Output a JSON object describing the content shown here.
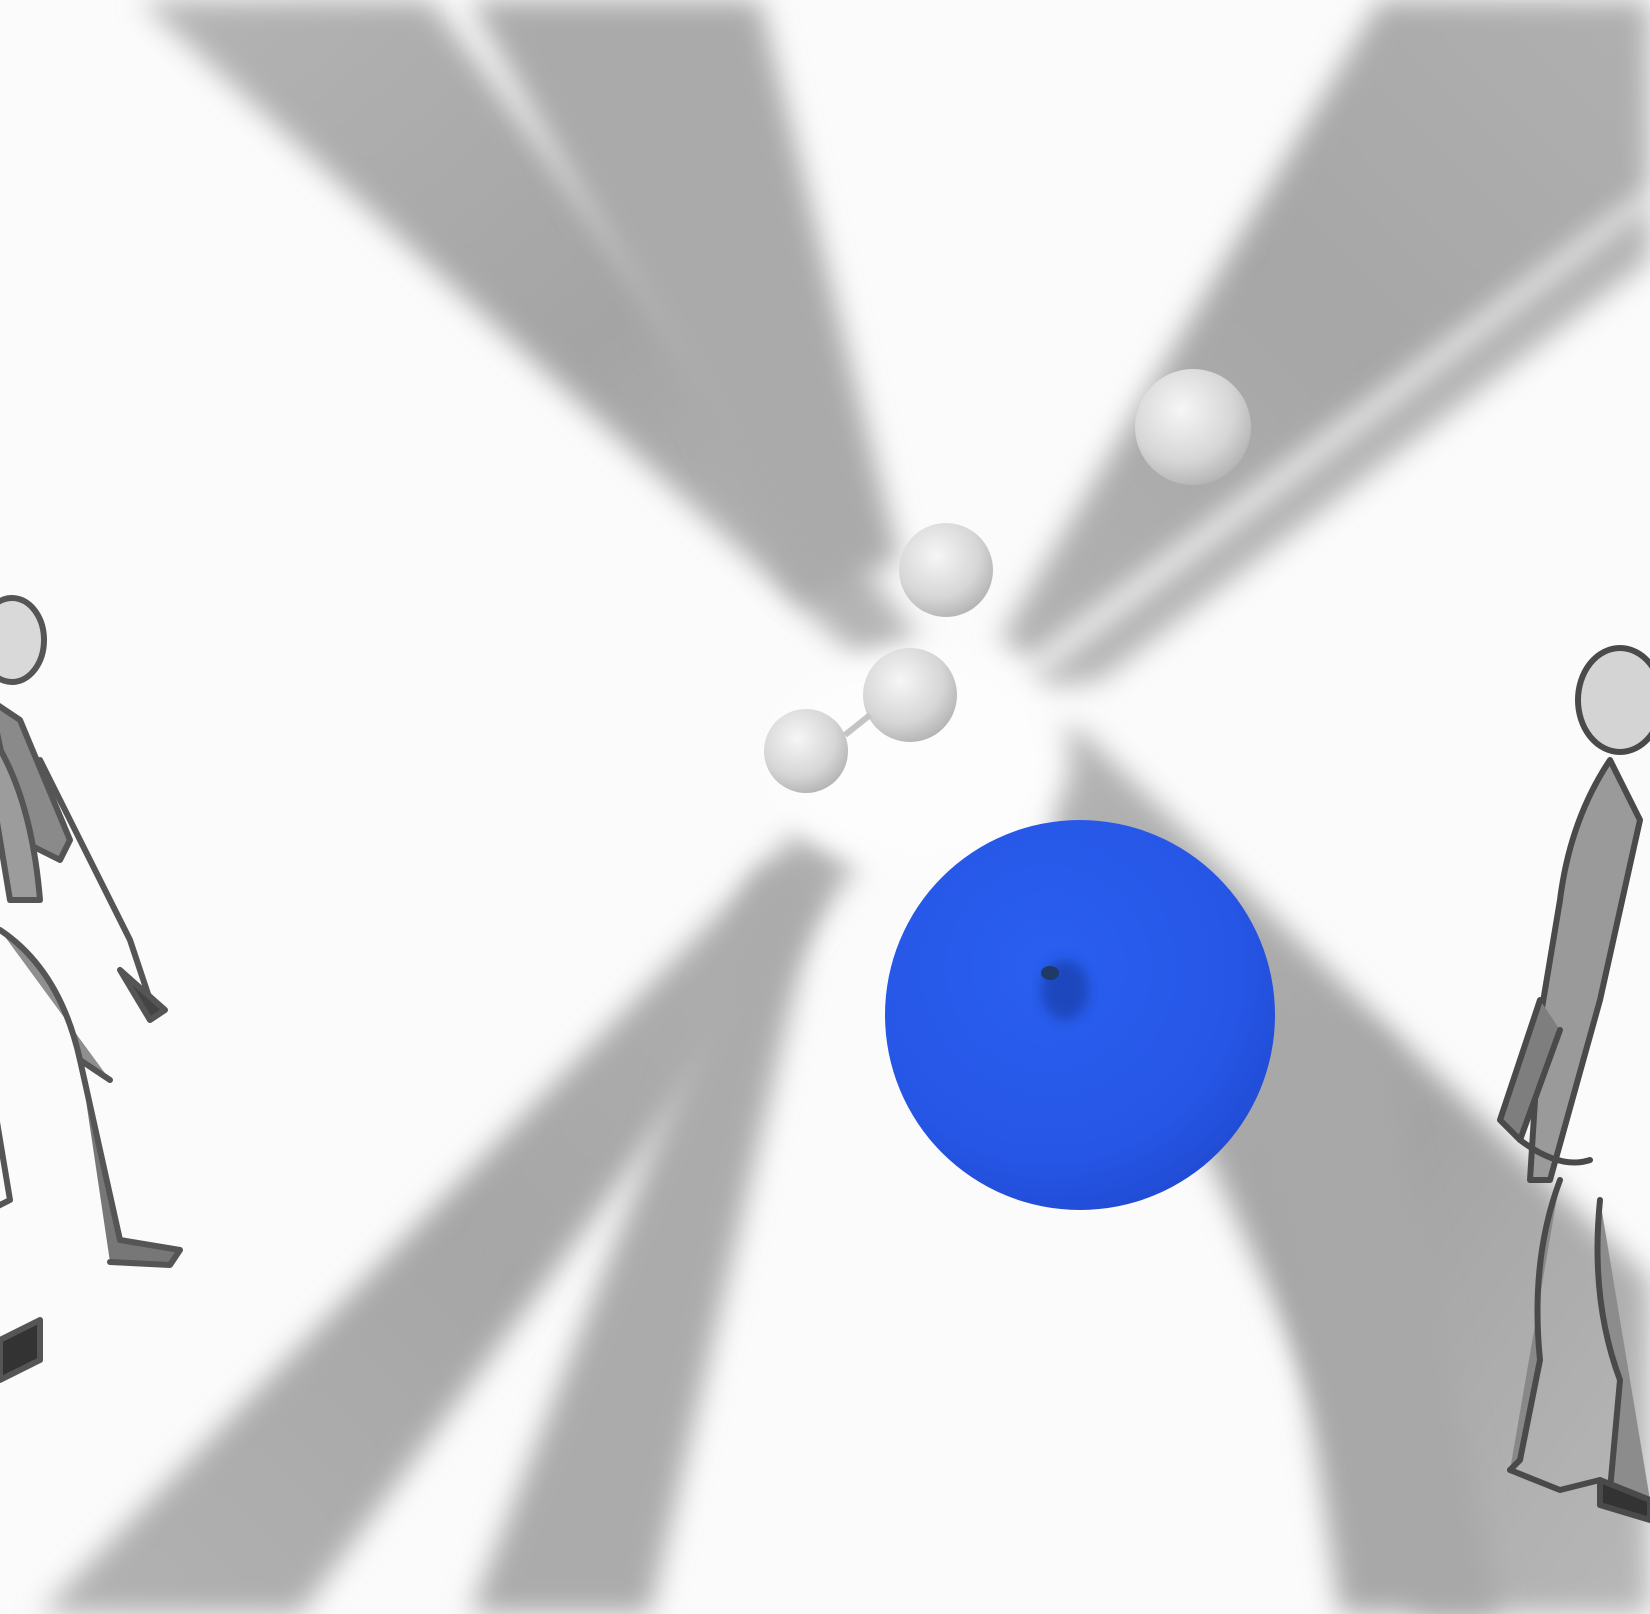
{
  "scene": {
    "subject": "abstract render",
    "background_color": "#fbfbfb",
    "beam_color": "#a9a9a9",
    "sphere_color": "#2557e8",
    "small_sphere_color": "#d4d4d4",
    "figure_color": "#6c6c6c",
    "icons": [
      "blue-sphere",
      "white-spheres",
      "robot-figures"
    ]
  }
}
